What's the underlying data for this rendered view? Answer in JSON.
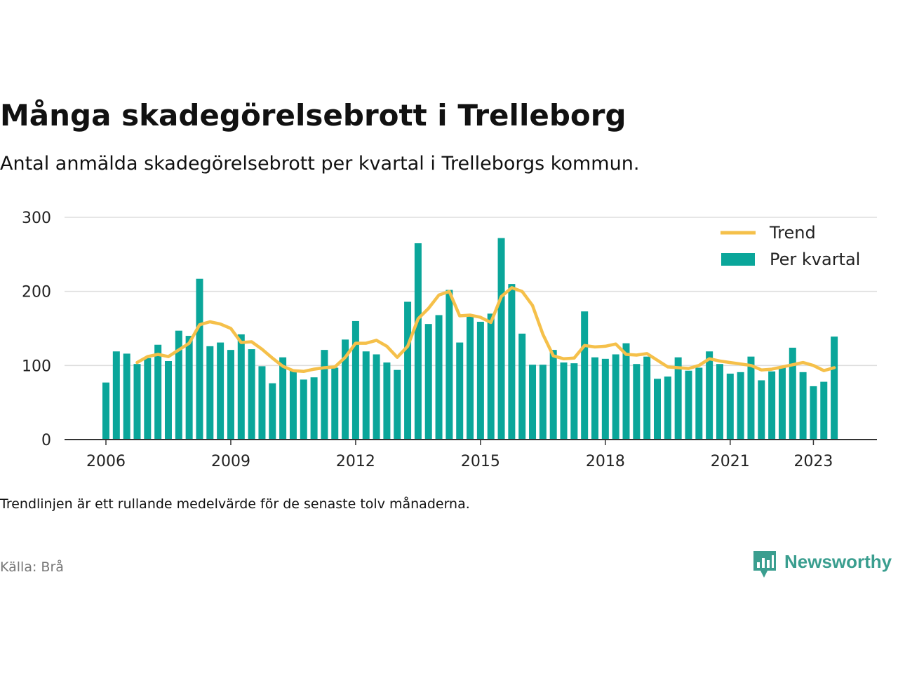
{
  "title": "Många skadegörelsebrott i Trelleborg",
  "subtitle": "Antal anmälda skadegörelsebrott per kvartal i Trelleborgs kommun.",
  "note": "Trendlinjen är ett rullande medelvärde för de senaste tolv månaderna.",
  "source": "Källa: Brå",
  "logo_text": "Newsworthy",
  "colors": {
    "bar": "#0aa69a",
    "trend": "#f5c04a",
    "grid": "#dddddd",
    "axis": "#333333",
    "logo": "#3a9e8f"
  },
  "chart_data": {
    "type": "bar",
    "x_start_year": 2006,
    "ylim": [
      0,
      300
    ],
    "yticks": [
      0,
      100,
      200,
      300
    ],
    "xticks": [
      "2006",
      "2009",
      "2012",
      "2015",
      "2018",
      "2021",
      "2023"
    ],
    "grid": true,
    "legend_position": "top-right",
    "legend": [
      "Trend",
      "Per kvartal"
    ],
    "quarters_per_year": 4,
    "series": [
      {
        "name": "Per kvartal",
        "type": "bar",
        "values": [
          77,
          119,
          116,
          102,
          110,
          128,
          106,
          147,
          140,
          217,
          126,
          131,
          121,
          142,
          122,
          99,
          76,
          111,
          93,
          81,
          84,
          121,
          97,
          135,
          160,
          119,
          115,
          104,
          94,
          186,
          265,
          156,
          168,
          202,
          131,
          168,
          159,
          170,
          272,
          210,
          143,
          101,
          101,
          121,
          104,
          103,
          173,
          111,
          109,
          115,
          130,
          102,
          112,
          82,
          85,
          111,
          93,
          97,
          119,
          102,
          89,
          91,
          112,
          80,
          92,
          97,
          124,
          91,
          72,
          78,
          139
        ]
      },
      {
        "name": "Trend",
        "type": "line",
        "start_index": 3,
        "values": [
          104,
          112,
          115,
          112,
          121,
          130,
          155,
          159,
          156,
          150,
          131,
          132,
          122,
          110,
          99,
          93,
          92,
          95,
          97,
          98,
          111,
          130,
          130,
          134,
          126,
          111,
          126,
          163,
          177,
          195,
          200,
          167,
          168,
          165,
          158,
          193,
          205,
          200,
          181,
          142,
          113,
          109,
          110,
          127,
          125,
          126,
          129,
          115,
          114,
          116,
          107,
          98,
          97,
          96,
          100,
          109,
          106,
          104,
          102,
          100,
          94,
          95,
          98,
          101,
          104,
          100,
          93,
          97
        ]
      }
    ]
  }
}
